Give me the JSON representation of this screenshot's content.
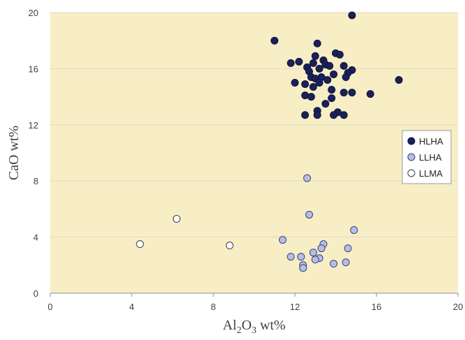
{
  "chart_data": {
    "type": "scatter",
    "xlabel": "Al2O3 wt%",
    "ylabel": "CaO wt%",
    "xlim": [
      0,
      20
    ],
    "ylim": [
      0,
      20
    ],
    "xticks": [
      0,
      4,
      8,
      12,
      16,
      20
    ],
    "yticks": [
      0,
      4,
      8,
      12,
      16,
      20
    ],
    "grid": true,
    "legend_position": "right",
    "colors": {
      "plot_bg": "#f7eec6",
      "grid": "#e0dac0"
    },
    "series": [
      {
        "name": "HLHA",
        "fill": "#1b2156",
        "stroke": "#0f1440",
        "points": [
          [
            14.8,
            19.8
          ],
          [
            11.0,
            18.0
          ],
          [
            13.1,
            17.8
          ],
          [
            14.0,
            17.1
          ],
          [
            14.2,
            17.0
          ],
          [
            13.0,
            16.9
          ],
          [
            13.4,
            16.6
          ],
          [
            12.2,
            16.5
          ],
          [
            11.8,
            16.4
          ],
          [
            12.9,
            16.4
          ],
          [
            13.5,
            16.3
          ],
          [
            12.6,
            16.1
          ],
          [
            14.4,
            16.2
          ],
          [
            13.7,
            16.2
          ],
          [
            13.2,
            16.0
          ],
          [
            14.8,
            15.9
          ],
          [
            12.7,
            15.8
          ],
          [
            13.9,
            15.6
          ],
          [
            14.6,
            15.7
          ],
          [
            12.8,
            15.4
          ],
          [
            13.3,
            15.4
          ],
          [
            14.5,
            15.4
          ],
          [
            13.0,
            15.3
          ],
          [
            13.6,
            15.2
          ],
          [
            17.1,
            15.2
          ],
          [
            12.0,
            15.0
          ],
          [
            13.2,
            15.0
          ],
          [
            12.5,
            14.9
          ],
          [
            12.9,
            14.7
          ],
          [
            13.8,
            14.5
          ],
          [
            14.4,
            14.3
          ],
          [
            14.8,
            14.3
          ],
          [
            15.7,
            14.2
          ],
          [
            12.5,
            14.1
          ],
          [
            12.8,
            14.0
          ],
          [
            13.8,
            13.9
          ],
          [
            13.5,
            13.5
          ],
          [
            13.1,
            13.0
          ],
          [
            14.1,
            12.9
          ],
          [
            12.5,
            12.7
          ],
          [
            13.1,
            12.7
          ],
          [
            13.9,
            12.7
          ],
          [
            14.4,
            12.7
          ]
        ]
      },
      {
        "name": "LLHA",
        "fill": "#b7bee6",
        "stroke": "#3b4176",
        "points": [
          [
            12.6,
            8.2
          ],
          [
            12.7,
            5.6
          ],
          [
            14.9,
            4.5
          ],
          [
            11.4,
            3.8
          ],
          [
            13.4,
            3.5
          ],
          [
            13.3,
            3.2
          ],
          [
            14.6,
            3.2
          ],
          [
            12.9,
            2.9
          ],
          [
            11.8,
            2.6
          ],
          [
            12.3,
            2.6
          ],
          [
            13.2,
            2.5
          ],
          [
            13.0,
            2.4
          ],
          [
            14.5,
            2.2
          ],
          [
            13.9,
            2.1
          ],
          [
            12.4,
            2.0
          ],
          [
            12.4,
            1.8
          ]
        ]
      },
      {
        "name": "LLMA",
        "fill": "#ffffff",
        "stroke": "#3b3b3b",
        "points": [
          [
            6.2,
            5.3
          ],
          [
            4.4,
            3.5
          ],
          [
            8.8,
            3.4
          ]
        ]
      }
    ]
  }
}
